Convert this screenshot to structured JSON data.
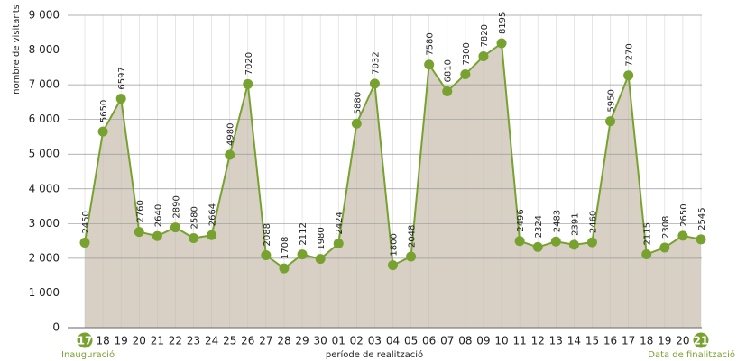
{
  "chart_data": {
    "type": "area",
    "y_label": "nombre de visitants",
    "x_label": "període de realització",
    "annotations": [
      "Inauguració",
      "Data de finalització"
    ],
    "categories": [
      "17",
      "18",
      "19",
      "20",
      "21",
      "22",
      "23",
      "24",
      "25",
      "26",
      "27",
      "28",
      "29",
      "30",
      "01",
      "02",
      "03",
      "04",
      "05",
      "06",
      "07",
      "08",
      "09",
      "10",
      "11",
      "12",
      "13",
      "14",
      "15",
      "16",
      "17",
      "18",
      "19",
      "20",
      "21"
    ],
    "series": [
      {
        "name": "nombre de visitants",
        "color": "#77a22f",
        "fill": "#d8d0c4",
        "values": [
          2450,
          5650,
          6597,
          2760,
          2640,
          2890,
          2580,
          2664,
          4980,
          7020,
          2088,
          1708,
          2112,
          1980,
          2424,
          5880,
          7032,
          1800,
          2048,
          7580,
          6810,
          7300,
          7820,
          8195,
          2496,
          2324,
          2483,
          2391,
          2460,
          5950,
          7270,
          2115,
          2308,
          2650,
          2545
        ]
      }
    ],
    "ylim": [
      0,
      9000
    ],
    "yticks": [
      0,
      {
        "value": 1000,
        "label": "1 000"
      },
      {
        "value": 2000,
        "label": "2 000"
      },
      {
        "value": 3000,
        "label": "3 000"
      },
      {
        "value": 4000,
        "label": "4 000"
      },
      {
        "value": 5000,
        "label": "5 000"
      },
      {
        "value": 6000,
        "label": "6 000"
      },
      {
        "value": 7000,
        "label": "7 000"
      },
      {
        "value": 8000,
        "label": "8 000"
      },
      {
        "value": 9000,
        "label": "9 000"
      }
    ],
    "grid": true
  }
}
